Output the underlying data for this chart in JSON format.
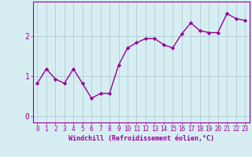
{
  "x": [
    0,
    1,
    2,
    3,
    4,
    5,
    6,
    7,
    8,
    9,
    10,
    11,
    12,
    13,
    14,
    15,
    16,
    17,
    18,
    19,
    20,
    21,
    22,
    23
  ],
  "y": [
    0.82,
    1.18,
    0.93,
    0.82,
    1.18,
    0.82,
    0.45,
    0.57,
    0.57,
    1.27,
    1.7,
    1.83,
    1.93,
    1.93,
    1.78,
    1.7,
    2.05,
    2.32,
    2.13,
    2.08,
    2.08,
    2.55,
    2.43,
    2.38
  ],
  "line_color": "#990099",
  "marker": "D",
  "marker_size": 2.2,
  "line_width": 1.0,
  "bg_color": "#d6eef2",
  "grid_color": "#b0ccd4",
  "xlabel": "Windchill (Refroidissement éolien,°C)",
  "ylim": [
    -0.15,
    2.85
  ],
  "xlim": [
    -0.5,
    23.5
  ],
  "yticks": [
    0,
    1,
    2
  ],
  "xticks": [
    0,
    1,
    2,
    3,
    4,
    5,
    6,
    7,
    8,
    9,
    10,
    11,
    12,
    13,
    14,
    15,
    16,
    17,
    18,
    19,
    20,
    21,
    22,
    23
  ],
  "tick_fontsize": 5.5,
  "xlabel_fontsize": 6.0,
  "tick_color": "#990099",
  "label_color": "#990099",
  "axis_color": "#990099"
}
